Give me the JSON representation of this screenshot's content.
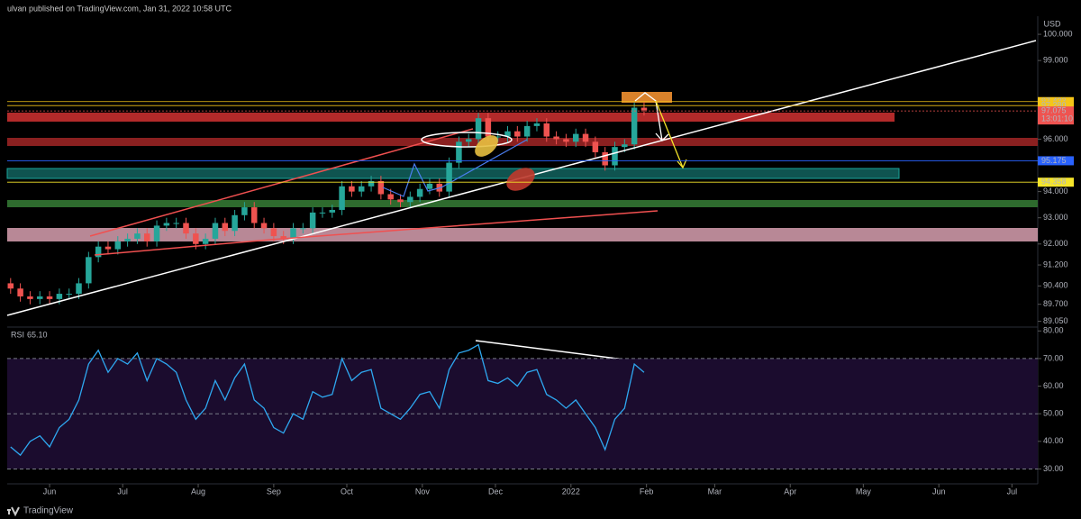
{
  "header": "ulvan published on TradingView.com, Jan 31, 2022 10:58 UTC",
  "footer": "TradingView",
  "chart_data": [
    {
      "type": "candlestick",
      "currency": "USD",
      "up_color": "#26a69a",
      "down_color": "#ef5350",
      "open": [
        90.5,
        90.3,
        90.0,
        89.9,
        90.0,
        89.9,
        90.1,
        90.1,
        90.5,
        91.5,
        91.9,
        91.8,
        92.1,
        92.2,
        92.4,
        92.1,
        92.7,
        92.8,
        92.8,
        92.4,
        92.0,
        92.2,
        92.8,
        92.5,
        93.1,
        93.4,
        92.8,
        92.6,
        92.3,
        92.2,
        92.6,
        92.6,
        93.2,
        93.2,
        93.3,
        94.2,
        94.0,
        94.2,
        94.4,
        93.9,
        93.7,
        93.6,
        93.8,
        94.1,
        94.3,
        94.0,
        95.1,
        95.9,
        96.0,
        96.8,
        96.1,
        96.1,
        96.3,
        96.1,
        96.5,
        96.6,
        96.1,
        96.0,
        95.9,
        96.2,
        95.9,
        95.5,
        95.0,
        95.7,
        95.8,
        97.2
      ],
      "high": [
        90.7,
        90.5,
        90.2,
        90.2,
        90.2,
        90.3,
        90.3,
        90.7,
        91.7,
        92.1,
        92.1,
        92.3,
        92.4,
        92.6,
        92.6,
        92.9,
        93.0,
        93.0,
        93.0,
        92.6,
        92.4,
        93.0,
        93.0,
        93.3,
        93.6,
        93.6,
        93.0,
        92.8,
        92.5,
        92.8,
        92.8,
        93.4,
        93.4,
        93.5,
        94.4,
        94.4,
        94.4,
        94.6,
        94.6,
        94.1,
        93.9,
        94.0,
        94.3,
        94.5,
        94.5,
        95.3,
        96.1,
        96.2,
        97.0,
        97.0,
        96.3,
        96.5,
        96.5,
        96.7,
        96.8,
        96.8,
        96.3,
        96.2,
        96.4,
        96.4,
        96.1,
        95.7,
        95.9,
        96.0,
        97.4,
        97.4
      ],
      "low": [
        90.1,
        89.8,
        89.7,
        89.7,
        89.7,
        89.7,
        89.9,
        89.9,
        90.3,
        91.3,
        91.6,
        91.6,
        91.9,
        92.0,
        91.9,
        91.9,
        92.5,
        92.6,
        92.2,
        91.8,
        91.8,
        92.0,
        92.3,
        92.3,
        92.9,
        92.6,
        92.4,
        92.1,
        92.0,
        92.0,
        92.4,
        92.4,
        93.0,
        93.0,
        93.1,
        93.8,
        93.8,
        94.0,
        93.7,
        93.5,
        93.4,
        93.4,
        93.6,
        93.9,
        93.8,
        93.8,
        94.9,
        95.7,
        95.8,
        95.9,
        95.9,
        95.9,
        95.9,
        95.9,
        96.3,
        95.9,
        95.8,
        95.7,
        95.7,
        95.7,
        95.3,
        94.8,
        94.8,
        95.5,
        95.6,
        96.9
      ],
      "close": [
        90.3,
        90.0,
        89.9,
        90.0,
        89.9,
        90.1,
        90.1,
        90.5,
        91.5,
        91.9,
        91.8,
        92.1,
        92.2,
        92.4,
        92.1,
        92.7,
        92.8,
        92.8,
        92.4,
        92.0,
        92.2,
        92.8,
        92.5,
        93.1,
        93.4,
        92.8,
        92.6,
        92.3,
        92.2,
        92.6,
        92.6,
        93.2,
        93.2,
        93.3,
        94.2,
        94.0,
        94.2,
        94.4,
        93.9,
        93.7,
        93.6,
        93.8,
        94.1,
        94.3,
        94.0,
        95.1,
        95.9,
        96.0,
        96.8,
        96.1,
        96.1,
        96.3,
        96.1,
        96.5,
        96.6,
        96.1,
        96.0,
        95.9,
        96.2,
        95.9,
        95.5,
        95.0,
        95.7,
        95.8,
        97.2,
        97.1
      ],
      "xlim": [
        -0.35,
        105.4
      ],
      "xticks": [
        {
          "value": 4,
          "label": "Jun"
        },
        {
          "value": 11.5,
          "label": "Jul"
        },
        {
          "value": 19.25,
          "label": "Aug"
        },
        {
          "value": 27,
          "label": "Sep"
        },
        {
          "value": 34.5,
          "label": "Oct"
        },
        {
          "value": 42.25,
          "label": "Nov"
        },
        {
          "value": 49.75,
          "label": "Dec"
        },
        {
          "value": 57.5,
          "label": "2022"
        },
        {
          "value": 65.25,
          "label": "Feb"
        },
        {
          "value": 72.25,
          "label": "Mar"
        },
        {
          "value": 80,
          "label": "Apr"
        },
        {
          "value": 87.5,
          "label": "May"
        },
        {
          "value": 95.25,
          "label": "Jun"
        },
        {
          "value": 102.75,
          "label": "Jul"
        }
      ],
      "ylim": [
        88.83,
        100.69
      ],
      "yticks": [
        {
          "value": 100,
          "label": "100.000"
        },
        {
          "value": 99,
          "label": "99.000"
        },
        {
          "value": 96,
          "label": "96.000"
        },
        {
          "value": 94,
          "label": "94.000"
        },
        {
          "value": 93,
          "label": "93.000"
        },
        {
          "value": 92,
          "label": "92.000"
        },
        {
          "value": 91.2,
          "label": "91.200"
        },
        {
          "value": 90.4,
          "label": "90.400"
        },
        {
          "value": 89.7,
          "label": "89.700"
        },
        {
          "value": 89.05,
          "label": "89.050"
        }
      ],
      "price_lines": [
        {
          "value": 97.433,
          "color": "#f5c518"
        },
        {
          "value": 97.28,
          "label": "97.280",
          "color": "#f5c518"
        },
        {
          "value": 97.075,
          "color": "#ef5350",
          "countdown": "13:01:10"
        },
        {
          "value": 95.175,
          "color": "#2962ff"
        },
        {
          "value": 94.358,
          "color": "#f5e52a"
        }
      ]
    },
    {
      "type": "line",
      "title": "RSI",
      "last_value": {
        "value": 65.1,
        "label": "65.10"
      },
      "color": "#2ea8f0",
      "values": [
        38,
        35,
        40,
        42,
        38,
        45,
        48,
        55,
        68,
        73,
        65,
        70,
        68,
        72,
        62,
        70,
        68,
        65,
        55,
        48,
        52,
        62,
        55,
        63,
        68,
        55,
        52,
        45,
        43,
        50,
        48,
        58,
        56,
        57,
        70,
        62,
        65,
        66,
        52,
        50,
        48,
        52,
        57,
        58,
        52,
        66,
        72,
        73,
        75,
        62,
        61,
        63,
        60,
        65,
        66,
        57,
        55,
        52,
        55,
        50,
        45,
        37,
        48,
        52,
        68,
        65
      ],
      "xlim": [
        -0.35,
        105.4
      ],
      "ylim": [
        24.6,
        81.4
      ],
      "yticks": [
        {
          "value": 80,
          "label": "80.00"
        },
        {
          "value": 70,
          "label": "70.00"
        },
        {
          "value": 60,
          "label": "60.00"
        },
        {
          "value": 50,
          "label": "50.00"
        },
        {
          "value": 40,
          "label": "40.00"
        },
        {
          "value": 30,
          "label": "30.00"
        }
      ],
      "levels": [
        70,
        50,
        30
      ]
    }
  ]
}
